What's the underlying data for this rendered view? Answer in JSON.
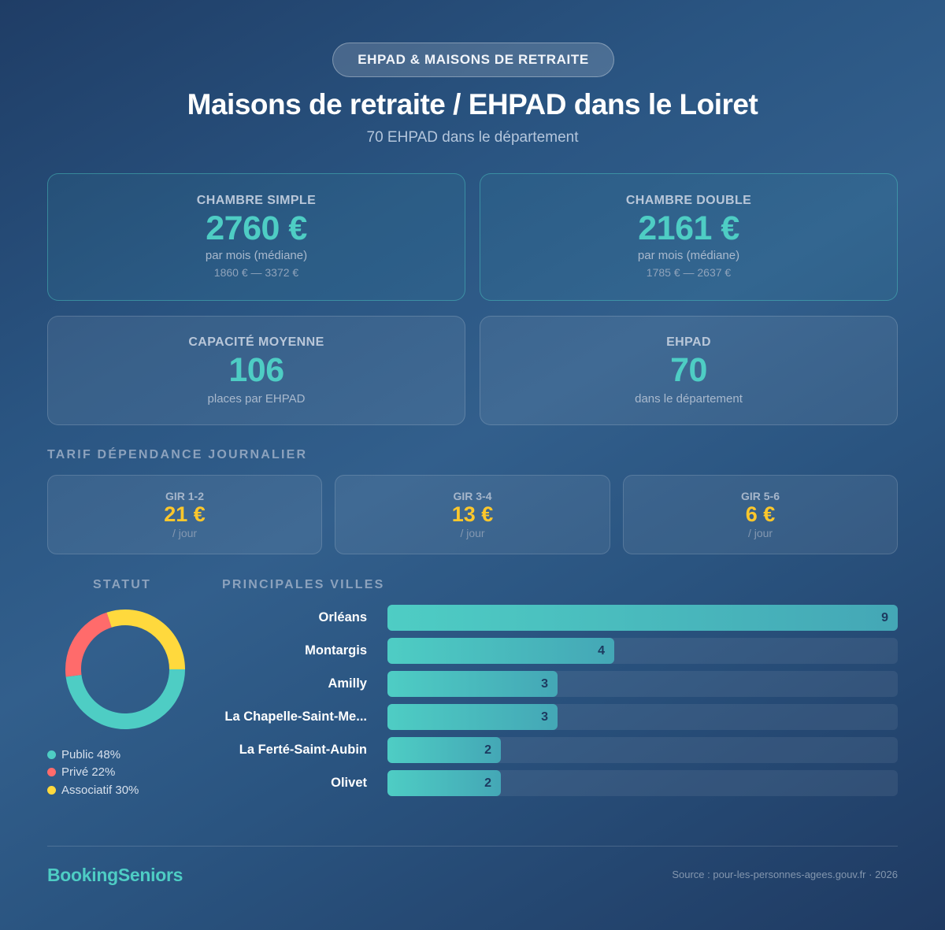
{
  "header": {
    "badge": "EHPAD & MAISONS DE RETRAITE",
    "title": "Maisons de retraite / EHPAD dans le Loiret",
    "subtitle": "70 EHPAD dans le département"
  },
  "price_cards": [
    {
      "label": "CHAMBRE SIMPLE",
      "value": "2760 €",
      "sub": "par mois (médiane)",
      "range": "1860 € — 3372 €"
    },
    {
      "label": "CHAMBRE DOUBLE",
      "value": "2161 €",
      "sub": "par mois (médiane)",
      "range": "1785 € — 2637 €"
    }
  ],
  "stat_cards": [
    {
      "label": "CAPACITÉ MOYENNE",
      "value": "106",
      "sub": "places par EHPAD"
    },
    {
      "label": "EHPAD",
      "value": "70",
      "sub": "dans le département"
    }
  ],
  "dependance": {
    "title": "TARIF DÉPENDANCE JOURNALIER",
    "items": [
      {
        "label": "GIR 1-2",
        "value": "21 €",
        "unit": "/ jour"
      },
      {
        "label": "GIR 3-4",
        "value": "13 €",
        "unit": "/ jour"
      },
      {
        "label": "GIR 5-6",
        "value": "6 €",
        "unit": "/ jour"
      }
    ]
  },
  "statut": {
    "title": "STATUT",
    "legend": [
      {
        "label": "Public 48%",
        "color": "#4ecdc4"
      },
      {
        "label": "Privé 22%",
        "color": "#ff6b6b"
      },
      {
        "label": "Associatif 30%",
        "color": "#ffd93d"
      }
    ]
  },
  "villes": {
    "title": "PRINCIPALES VILLES",
    "max": 9,
    "items": [
      {
        "label": "Orléans",
        "value": "9"
      },
      {
        "label": "Montargis",
        "value": "4"
      },
      {
        "label": "Amilly",
        "value": "3"
      },
      {
        "label": "La Chapelle-Saint-Me...",
        "value": "3"
      },
      {
        "label": "La Ferté-Saint-Aubin",
        "value": "2"
      },
      {
        "label": "Olivet",
        "value": "2"
      }
    ]
  },
  "footer": {
    "brand": "BookingSeniors",
    "source": "Source : pour-les-personnes-agees.gouv.fr · 2026"
  },
  "chart_data": [
    {
      "type": "pie",
      "title": "STATUT",
      "categories": [
        "Public",
        "Privé",
        "Associatif"
      ],
      "values": [
        48,
        22,
        30
      ],
      "colors": [
        "#4ecdc4",
        "#ff6b6b",
        "#ffd93d"
      ],
      "donut": true,
      "legend_position": "bottom"
    },
    {
      "type": "bar",
      "orientation": "horizontal",
      "title": "PRINCIPALES VILLES",
      "categories": [
        "Orléans",
        "Montargis",
        "Amilly",
        "La Chapelle-Saint-Me...",
        "La Ferté-Saint-Aubin",
        "Olivet"
      ],
      "values": [
        9,
        4,
        3,
        3,
        2,
        2
      ],
      "xlim": [
        0,
        9
      ],
      "grid": false
    }
  ]
}
